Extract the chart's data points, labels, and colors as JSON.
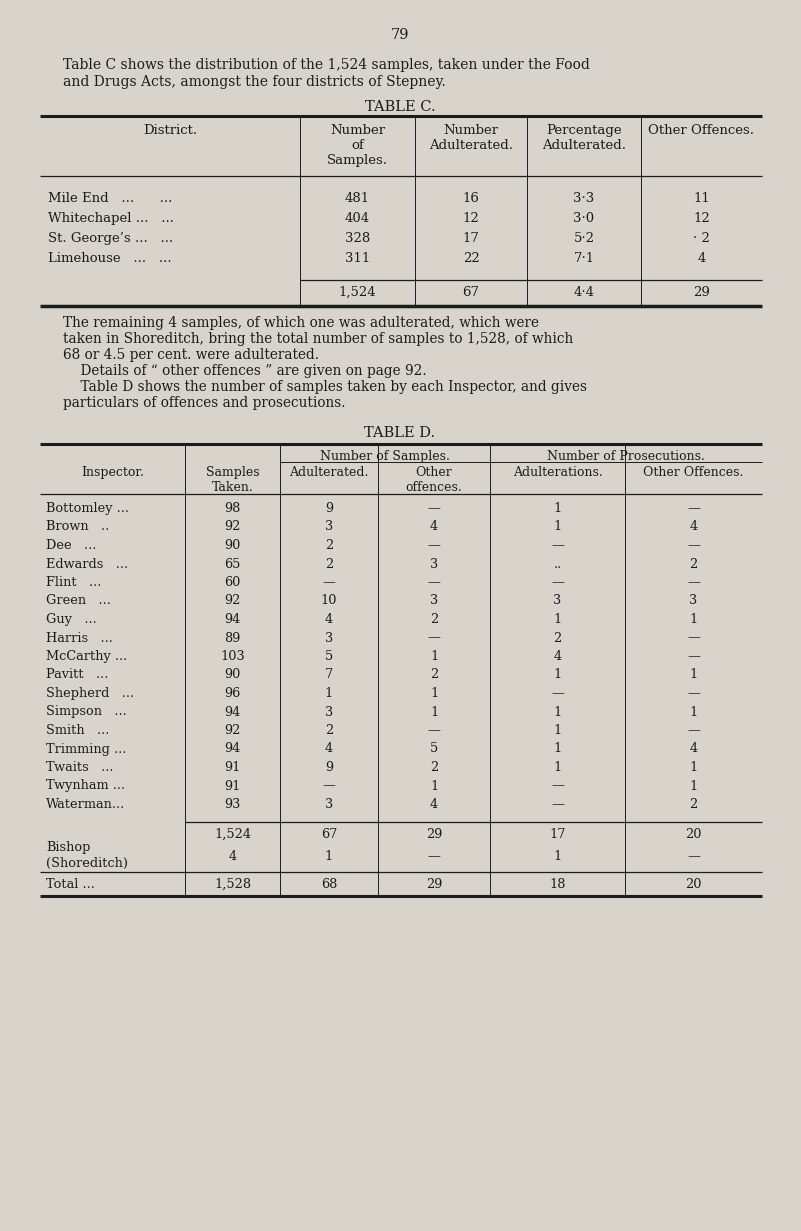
{
  "page_number": "79",
  "intro_line1": "Table C shows the distribution of the 1,524 samples, taken under the Food",
  "intro_line2": "and Drugs Acts, amongst the four districts of Stepney.",
  "table_c_title": "TABLE C.",
  "table_c_headers": [
    "District.",
    "Number\nof\nSamples.",
    "Number\nAdulterated.",
    "Percentage\nAdulterated.",
    "Other Offences."
  ],
  "table_c_rows": [
    [
      "Mile End   ...      ...",
      "481",
      "16",
      "3·3",
      "11"
    ],
    [
      "Whitechapel ...   ...",
      "404",
      "12",
      "3·0",
      "12"
    ],
    [
      "St. George’s ...   ...",
      "328",
      "17",
      "5·2",
      "· 2"
    ],
    [
      "Limehouse   ...   ...",
      "311",
      "22",
      "7·1",
      "4"
    ]
  ],
  "table_c_total": [
    "",
    "1,524",
    "67",
    "4·4",
    "29"
  ],
  "middle_para1_l1": "The remaining 4 samples, of which one was adulterated, which were",
  "middle_para1_l2": "taken in Shoreditch, bring the total number of samples to 1,528, of which",
  "middle_para1_l3": "68 or 4.5 per cent. were adulterated.",
  "middle_para2": "    Details of “ other offences ” are given on page 92.",
  "middle_para3_l1": "    Table D shows the number of samples taken by each Inspector, and gives",
  "middle_para3_l2": "particulars of offences and prosecutions.",
  "table_d_title": "TABLE D.",
  "table_d_grp1": "Number of Samples.",
  "table_d_grp2": "Number of Prosecutions.",
  "table_d_headers": [
    "Inspector.",
    "Samples\nTaken.",
    "Adulterated.",
    "Other\noffences.",
    "Adulterations.",
    "Other Offences."
  ],
  "table_d_rows": [
    [
      "Bottomley ...",
      "98",
      "9",
      "—",
      "1",
      "—"
    ],
    [
      "Brown   ..",
      "92",
      "3",
      "4",
      "1",
      "4"
    ],
    [
      "Dee   ...",
      "90",
      "2",
      "—",
      "—",
      "—"
    ],
    [
      "Edwards   ...",
      "65",
      "2",
      "3",
      "..",
      "2"
    ],
    [
      "Flint   ...",
      "60",
      "—",
      "—",
      "—",
      "—"
    ],
    [
      "Green   ...",
      "92",
      "10",
      "3",
      "3",
      "3"
    ],
    [
      "Guy   ...",
      "94",
      "4",
      "2",
      "1",
      "1"
    ],
    [
      "Harris   ...",
      "89",
      "3",
      "—",
      "2",
      "—"
    ],
    [
      "McCarthy ...",
      "103",
      "5",
      "1",
      "4",
      "—"
    ],
    [
      "Pavitt   ...",
      "90",
      "7",
      "2",
      "1",
      "1"
    ],
    [
      "Shepherd   ...",
      "96",
      "1",
      "1",
      "—",
      "—"
    ],
    [
      "Simpson   ...",
      "94",
      "3",
      "1",
      "1",
      "1"
    ],
    [
      "Smith   ...",
      "92",
      "2",
      "—",
      "1",
      "—"
    ],
    [
      "Trimming ...",
      "94",
      "4",
      "5",
      "1",
      "4"
    ],
    [
      "Twaits   ...",
      "91",
      "9",
      "2",
      "1",
      "1"
    ],
    [
      "Twynham ...",
      "91",
      "—",
      "1",
      "—",
      "1"
    ],
    [
      "Waterman...",
      "93",
      "3",
      "4",
      "—",
      "2"
    ]
  ],
  "table_d_subtotal": [
    "",
    "1,524",
    "67",
    "29",
    "17",
    "20"
  ],
  "table_d_bishop": [
    "Bishop\n(Shoreditch)",
    "4",
    "1",
    "—",
    "1",
    "—"
  ],
  "table_d_total": [
    "Total ...",
    "1,528",
    "68",
    "29",
    "18",
    "20"
  ],
  "bg_color": "#d8d4cc",
  "text_color": "#1c1c1c",
  "line_color": "#1c1c1c"
}
